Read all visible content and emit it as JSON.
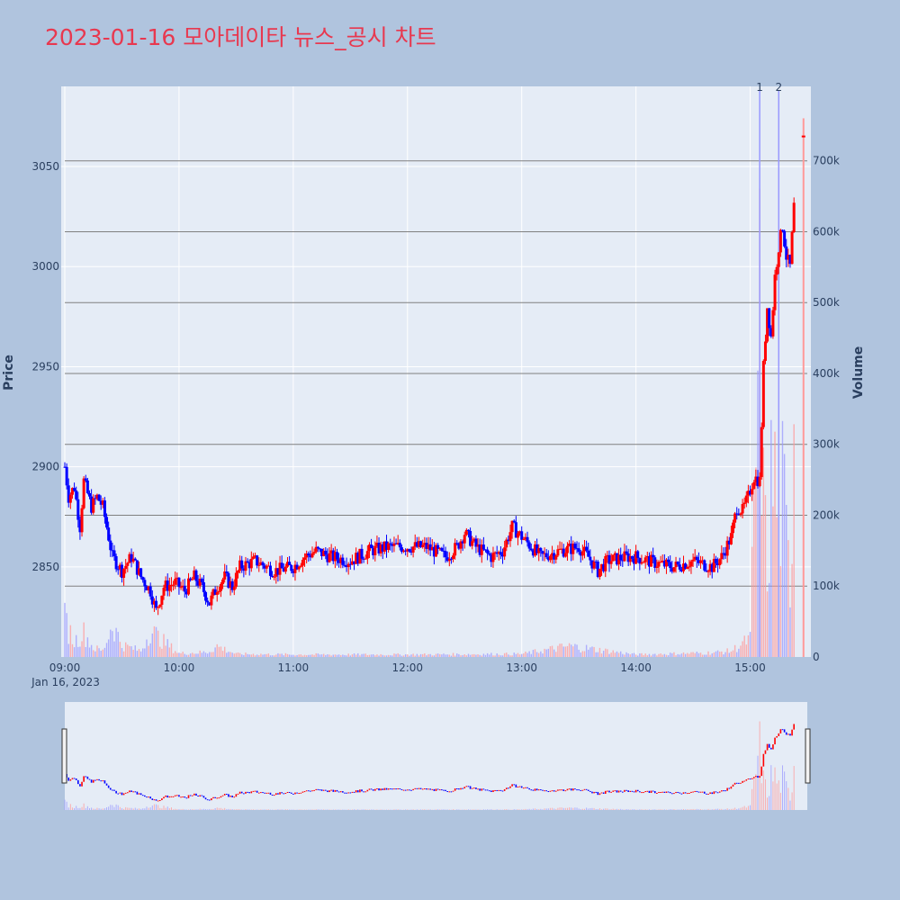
{
  "title": "2023-01-16 모아데이타 뉴스_공시 차트",
  "colors": {
    "background": "#b0c4de",
    "plot_bg": "#e5ecf6",
    "title": "#e8384f",
    "up": "#ff0000",
    "down": "#0000ff",
    "volume_up": "#ff9999",
    "volume_down": "#9999ff",
    "event_line": "#9999ff",
    "volume_grid": "#808080"
  },
  "chart_data": {
    "type": "candlestick",
    "x_axis": {
      "ticks": [
        "09:00",
        "10:00",
        "11:00",
        "12:00",
        "13:00",
        "14:00",
        "15:00"
      ],
      "date_label": "Jan 16, 2023",
      "range": [
        "09:00",
        "15:30"
      ]
    },
    "price_axis": {
      "label": "Price",
      "ticks": [
        2850,
        2900,
        2950,
        3000,
        3050
      ],
      "range": [
        2805,
        3090
      ]
    },
    "volume_axis": {
      "label": "Volume",
      "ticks": [
        "0",
        "100k",
        "200k",
        "300k",
        "400k",
        "500k",
        "600k",
        "700k"
      ],
      "range": [
        0,
        805000
      ]
    },
    "event_markers": [
      {
        "label": "1",
        "time": "15:05"
      },
      {
        "label": "2",
        "time": "15:15"
      }
    ],
    "price_path": [
      [
        "09:00",
        2900
      ],
      [
        "09:02",
        2885
      ],
      [
        "09:05",
        2890
      ],
      [
        "09:08",
        2870
      ],
      [
        "09:10",
        2893
      ],
      [
        "09:14",
        2880
      ],
      [
        "09:17",
        2885
      ],
      [
        "09:20",
        2880
      ],
      [
        "09:25",
        2855
      ],
      [
        "09:30",
        2848
      ],
      [
        "09:35",
        2855
      ],
      [
        "09:40",
        2845
      ],
      [
        "09:45",
        2838
      ],
      [
        "09:48",
        2828
      ],
      [
        "09:52",
        2840
      ],
      [
        "09:58",
        2842
      ],
      [
        "10:03",
        2838
      ],
      [
        "10:08",
        2845
      ],
      [
        "10:12",
        2840
      ],
      [
        "10:16",
        2832
      ],
      [
        "10:20",
        2840
      ],
      [
        "10:24",
        2845
      ],
      [
        "10:28",
        2840
      ],
      [
        "10:32",
        2850
      ],
      [
        "10:40",
        2853
      ],
      [
        "10:50",
        2848
      ],
      [
        "11:00",
        2850
      ],
      [
        "11:06",
        2855
      ],
      [
        "11:12",
        2858
      ],
      [
        "11:20",
        2855
      ],
      [
        "11:30",
        2853
      ],
      [
        "11:40",
        2858
      ],
      [
        "11:50",
        2860
      ],
      [
        "12:00",
        2860
      ],
      [
        "12:10",
        2860
      ],
      [
        "12:20",
        2855
      ],
      [
        "12:26",
        2860
      ],
      [
        "12:30",
        2867
      ],
      [
        "12:36",
        2860
      ],
      [
        "12:44",
        2855
      ],
      [
        "12:50",
        2858
      ],
      [
        "12:55",
        2870
      ],
      [
        "13:00",
        2865
      ],
      [
        "13:05",
        2860
      ],
      [
        "13:10",
        2855
      ],
      [
        "13:20",
        2858
      ],
      [
        "13:30",
        2860
      ],
      [
        "13:35",
        2855
      ],
      [
        "13:40",
        2848
      ],
      [
        "13:45",
        2853
      ],
      [
        "13:55",
        2855
      ],
      [
        "14:00",
        2855
      ],
      [
        "14:10",
        2852
      ],
      [
        "14:20",
        2850
      ],
      [
        "14:30",
        2853
      ],
      [
        "14:40",
        2850
      ],
      [
        "14:45",
        2855
      ],
      [
        "14:50",
        2865
      ],
      [
        "14:53",
        2880
      ],
      [
        "14:56",
        2878
      ],
      [
        "14:59",
        2885
      ],
      [
        "15:02",
        2895
      ],
      [
        "15:05",
        2893
      ],
      [
        "15:07",
        2950
      ],
      [
        "15:09",
        2980
      ],
      [
        "15:11",
        2965
      ],
      [
        "15:13",
        2995
      ],
      [
        "15:15",
        3010
      ],
      [
        "15:17",
        3020
      ],
      [
        "15:19",
        3005
      ],
      [
        "15:21",
        3000
      ],
      [
        "15:23",
        3030
      ]
    ],
    "volume_path": [
      [
        "09:00",
        60000
      ],
      [
        "09:05",
        25000
      ],
      [
        "09:10",
        40000
      ],
      [
        "09:15",
        15000
      ],
      [
        "09:20",
        10000
      ],
      [
        "09:25",
        55000
      ],
      [
        "09:30",
        20000
      ],
      [
        "09:40",
        10000
      ],
      [
        "09:45",
        45000
      ],
      [
        "09:50",
        30000
      ],
      [
        "10:00",
        6000
      ],
      [
        "10:15",
        8000
      ],
      [
        "10:20",
        18000
      ],
      [
        "10:30",
        5000
      ],
      [
        "11:00",
        4000
      ],
      [
        "12:00",
        4000
      ],
      [
        "13:00",
        5000
      ],
      [
        "13:25",
        18000
      ],
      [
        "14:00",
        4000
      ],
      [
        "14:40",
        7000
      ],
      [
        "14:50",
        10000
      ],
      [
        "15:00",
        30000
      ],
      [
        "15:05",
        530000
      ],
      [
        "15:07",
        250000
      ],
      [
        "15:09",
        140000
      ],
      [
        "15:11",
        280000
      ],
      [
        "15:13",
        300000
      ],
      [
        "15:15",
        200000
      ],
      [
        "15:17",
        270000
      ],
      [
        "15:19",
        190000
      ],
      [
        "15:21",
        110000
      ],
      [
        "15:23",
        430000
      ],
      [
        "15:28",
        760000
      ]
    ]
  }
}
